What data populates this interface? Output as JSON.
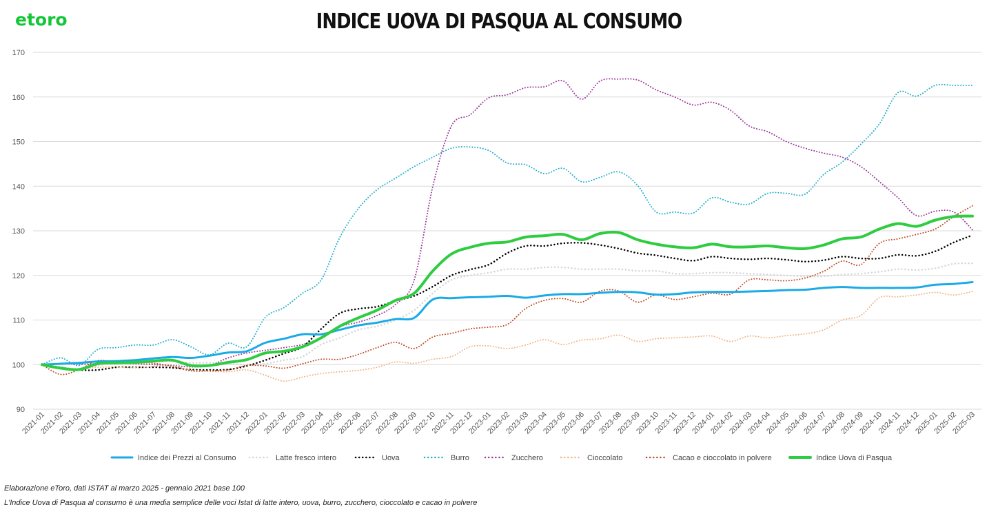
{
  "logo": {
    "text": "etoro"
  },
  "colors": {
    "cpi": "#1aaae6",
    "milk": "#d6d6d6",
    "eggs": "#000000",
    "butter": "#26b0cf",
    "sugar": "#9c3c9b",
    "chocolate": "#f1b58b",
    "cocoa": "#c0502a",
    "easter": "#2ecc40"
  },
  "chart_data": {
    "type": "line",
    "title": "INDICE UOVA DI PASQUA AL CONSUMO",
    "ylim": [
      90,
      170
    ],
    "yticks": [
      90,
      100,
      110,
      120,
      130,
      140,
      150,
      160,
      170
    ],
    "grid": true,
    "legend_position": "bottom",
    "x": [
      "2021-01",
      "2021-02",
      "2021-03",
      "2021-04",
      "2021-05",
      "2021-06",
      "2021-07",
      "2021-08",
      "2021-09",
      "2021-10",
      "2021-11",
      "2021-12",
      "2022-01",
      "2022-02",
      "2022-03",
      "2022-04",
      "2022-05",
      "2022-06",
      "2022-07",
      "2022-08",
      "2022-09",
      "2022-10",
      "2022-11",
      "2022-12",
      "2023-01",
      "2023-02",
      "2023-03",
      "2023-04",
      "2023-05",
      "2023-06",
      "2023-07",
      "2023-08",
      "2023-09",
      "2023-10",
      "2023-11",
      "2023-12",
      "2024-01",
      "2024-02",
      "2024-03",
      "2024-04",
      "2024-05",
      "2024-06",
      "2024-07",
      "2024-08",
      "2024-09",
      "2024-10",
      "2024-11",
      "2024-12",
      "2025-01",
      "2025-02",
      "2025-03"
    ],
    "series": [
      {
        "name": "Indice dei Prezzi al Consumo",
        "color_key": "cpi",
        "style": "solid",
        "width": 3,
        "values": [
          100,
          100.2,
          100.4,
          100.7,
          100.8,
          101.0,
          101.4,
          101.7,
          101.5,
          102.0,
          102.7,
          103.0,
          104.9,
          105.8,
          106.8,
          106.8,
          107.8,
          108.8,
          109.4,
          110.2,
          110.5,
          114.6,
          114.9,
          115.1,
          115.2,
          115.4,
          115.0,
          115.5,
          115.8,
          115.8,
          116.1,
          116.3,
          116.2,
          115.7,
          115.8,
          116.2,
          116.3,
          116.3,
          116.4,
          116.5,
          116.7,
          116.8,
          117.2,
          117.4,
          117.2,
          117.2,
          117.2,
          117.3,
          117.9,
          118.1,
          118.5
        ]
      },
      {
        "name": "Latte fresco intero",
        "color_key": "milk",
        "style": "dotted",
        "width": 2.5,
        "values": [
          100,
          99.5,
          99.0,
          99.8,
          100.3,
          100.5,
          100.6,
          100.7,
          100.4,
          100.4,
          100.2,
          100.0,
          100.2,
          101.0,
          101.8,
          104.5,
          106.0,
          107.8,
          108.6,
          110.0,
          112.2,
          116.0,
          119.0,
          120.0,
          120.6,
          121.4,
          121.4,
          121.8,
          121.8,
          121.4,
          121.4,
          121.4,
          121.0,
          121.0,
          120.4,
          120.4,
          120.6,
          120.6,
          120.4,
          120.2,
          120.0,
          119.8,
          119.8,
          120.2,
          120.4,
          120.8,
          121.4,
          121.2,
          121.6,
          122.6,
          122.7
        ]
      },
      {
        "name": "Uova",
        "color_key": "eggs",
        "style": "dotted",
        "width": 2.5,
        "values": [
          100,
          99.3,
          98.8,
          98.8,
          99.4,
          99.4,
          99.4,
          99.3,
          98.9,
          98.8,
          98.9,
          99.7,
          101.0,
          102.5,
          104.0,
          108.0,
          111.5,
          112.5,
          113.0,
          114.3,
          115.4,
          117.5,
          120.0,
          121.3,
          122.4,
          125.0,
          126.6,
          126.6,
          127.2,
          127.3,
          126.8,
          126.0,
          125.0,
          124.5,
          123.8,
          123.3,
          124.2,
          123.8,
          123.6,
          123.8,
          123.5,
          123.1,
          123.4,
          124.2,
          123.8,
          123.8,
          124.6,
          124.4,
          125.4,
          127.4,
          129.0
        ]
      },
      {
        "name": "Burro",
        "color_key": "butter",
        "style": "dotted",
        "width": 2,
        "values": [
          100,
          101.5,
          99.8,
          103.4,
          103.8,
          104.4,
          104.4,
          105.6,
          104.0,
          102.2,
          104.8,
          104.0,
          110.6,
          112.8,
          116.0,
          119.0,
          128.5,
          135.0,
          139.2,
          141.8,
          144.4,
          146.5,
          148.5,
          148.8,
          148.0,
          145.2,
          144.8,
          142.8,
          144.0,
          141.0,
          142.0,
          143.2,
          140.2,
          134.2,
          134.2,
          134.0,
          137.4,
          136.4,
          136.0,
          138.4,
          138.4,
          138.2,
          142.6,
          145.4,
          149.4,
          154.0,
          161.0,
          160.2,
          162.6,
          162.6,
          162.6
        ]
      },
      {
        "name": "Zucchero",
        "color_key": "sugar",
        "style": "dotted",
        "width": 2,
        "values": [
          100,
          100.2,
          100.1,
          100.2,
          100.3,
          100.2,
          100.0,
          99.8,
          99.5,
          99.8,
          101.5,
          102.6,
          103.2,
          103.8,
          104.5,
          106.0,
          108.5,
          109.5,
          111.0,
          113.5,
          119.0,
          140.0,
          153.5,
          156.0,
          159.8,
          160.5,
          162.1,
          162.3,
          163.6,
          159.5,
          163.6,
          164.0,
          163.8,
          161.6,
          160.0,
          158.2,
          158.8,
          157.0,
          153.5,
          152.2,
          150.0,
          148.5,
          147.4,
          146.5,
          144.4,
          141.0,
          137.4,
          133.4,
          134.4,
          134.2,
          130.2
        ]
      },
      {
        "name": "Cioccolato",
        "color_key": "chocolate",
        "style": "dotted",
        "width": 2,
        "values": [
          100,
          99.2,
          99.0,
          99.4,
          99.4,
          99.3,
          99.6,
          99.7,
          98.8,
          98.5,
          98.4,
          98.8,
          97.6,
          96.3,
          97.2,
          98.0,
          98.4,
          98.7,
          99.4,
          100.6,
          100.3,
          101.2,
          101.8,
          104.0,
          104.2,
          103.6,
          104.4,
          105.6,
          104.5,
          105.5,
          105.8,
          106.6,
          105.2,
          105.8,
          106.0,
          106.2,
          106.4,
          105.2,
          106.4,
          106.0,
          106.5,
          106.9,
          107.8,
          110.0,
          111.0,
          115.0,
          115.2,
          115.6,
          116.2,
          115.6,
          116.4
        ]
      },
      {
        "name": "Cacao e cioccolato in polvere",
        "color_key": "cocoa",
        "style": "dotted",
        "width": 2,
        "values": [
          100,
          97.8,
          98.9,
          100.9,
          100.5,
          100.5,
          100.3,
          99.6,
          98.6,
          98.6,
          98.8,
          99.8,
          99.7,
          99.2,
          100.2,
          101.2,
          101.2,
          102.3,
          103.8,
          105.0,
          103.6,
          106.2,
          107.0,
          108.0,
          108.4,
          109.0,
          112.6,
          114.4,
          114.8,
          114.0,
          116.5,
          116.5,
          114.0,
          115.6,
          114.6,
          115.2,
          116.0,
          115.8,
          119.0,
          119.0,
          118.8,
          119.4,
          120.9,
          123.2,
          122.4,
          127.2,
          128.2,
          129.2,
          130.4,
          133.2,
          135.6
        ]
      },
      {
        "name": "Indice Uova di Pasqua",
        "color_key": "easter",
        "style": "solid",
        "width": 4,
        "values": [
          100,
          99.2,
          98.9,
          100.2,
          100.4,
          100.5,
          100.8,
          101.0,
          99.8,
          99.8,
          100.5,
          101.1,
          102.6,
          103.0,
          104.0,
          106.0,
          108.6,
          110.5,
          112.2,
          114.4,
          116.0,
          121.0,
          124.8,
          126.3,
          127.2,
          127.5,
          128.6,
          128.9,
          129.2,
          128.0,
          129.4,
          129.6,
          128.0,
          127.0,
          126.4,
          126.2,
          127.0,
          126.4,
          126.4,
          126.6,
          126.2,
          126.0,
          126.8,
          128.2,
          128.6,
          130.4,
          131.6,
          131.0,
          132.4,
          133.2,
          133.3
        ]
      }
    ]
  },
  "notes": {
    "line1": "Elaborazione eToro, dati ISTAT al marzo 2025 - gennaio 2021 base 100",
    "line2": "L'Indice Uova di Pasqua al consumo è una media semplice delle voci Istat di latte intero, uova, burro, zucchero, cioccolato e cacao in polvere"
  }
}
